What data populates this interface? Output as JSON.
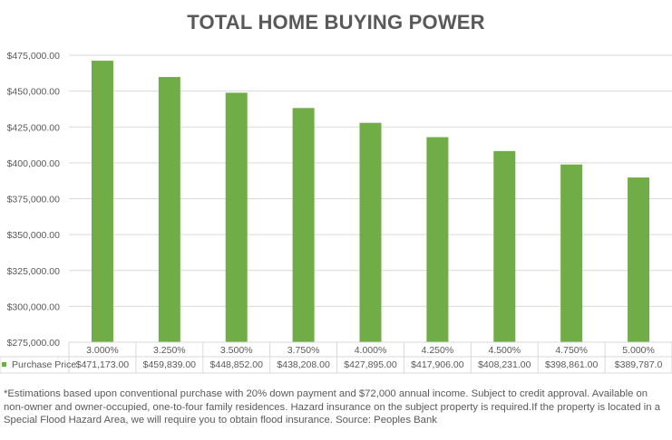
{
  "chart_data": {
    "type": "bar",
    "title": "TOTAL HOME BUYING POWER",
    "categories": [
      "3.000%",
      "3.250%",
      "3.500%",
      "3.750%",
      "4.000%",
      "4.250%",
      "4.500%",
      "4.750%",
      "5.000%"
    ],
    "series": [
      {
        "name": "Purchase Price",
        "values": [
          471173.0,
          459839.0,
          448852.0,
          438208.0,
          427895.0,
          417906.0,
          408231.0,
          398861.0,
          389787.0
        ],
        "value_labels": [
          "$471,173.00",
          "$459,839.00",
          "$448,852.00",
          "$438,208.00",
          "$427,895.00",
          "$417,906.00",
          "$408,231.00",
          "$398,861.00",
          "$389,787.0"
        ],
        "color": "#70ad47"
      }
    ],
    "y_ticks": [
      "$275,000.00",
      "$300,000.00",
      "$325,000.00",
      "$350,000.00",
      "$375,000.00",
      "$400,000.00",
      "$425,000.00",
      "$450,000.00",
      "$475,000.00"
    ],
    "ylim": [
      275000,
      475000
    ],
    "y_step": 25000,
    "grid": true,
    "legend": "data-table-left"
  },
  "footnote": "*Estimations based upon conventional purchase with 20% down payment and $72,000 annual income. Subject to credit approval. Available on non-owner and owner-occupied, one-to-four family residences. Hazard insurance on the subject property is required.If the property is located in a Special Flood Hazard Area, we will require you to obtain flood insurance. Source: Peoples Bank",
  "colors": {
    "bar": "#70ad47",
    "grid": "#d9d9d9",
    "text": "#595959"
  }
}
